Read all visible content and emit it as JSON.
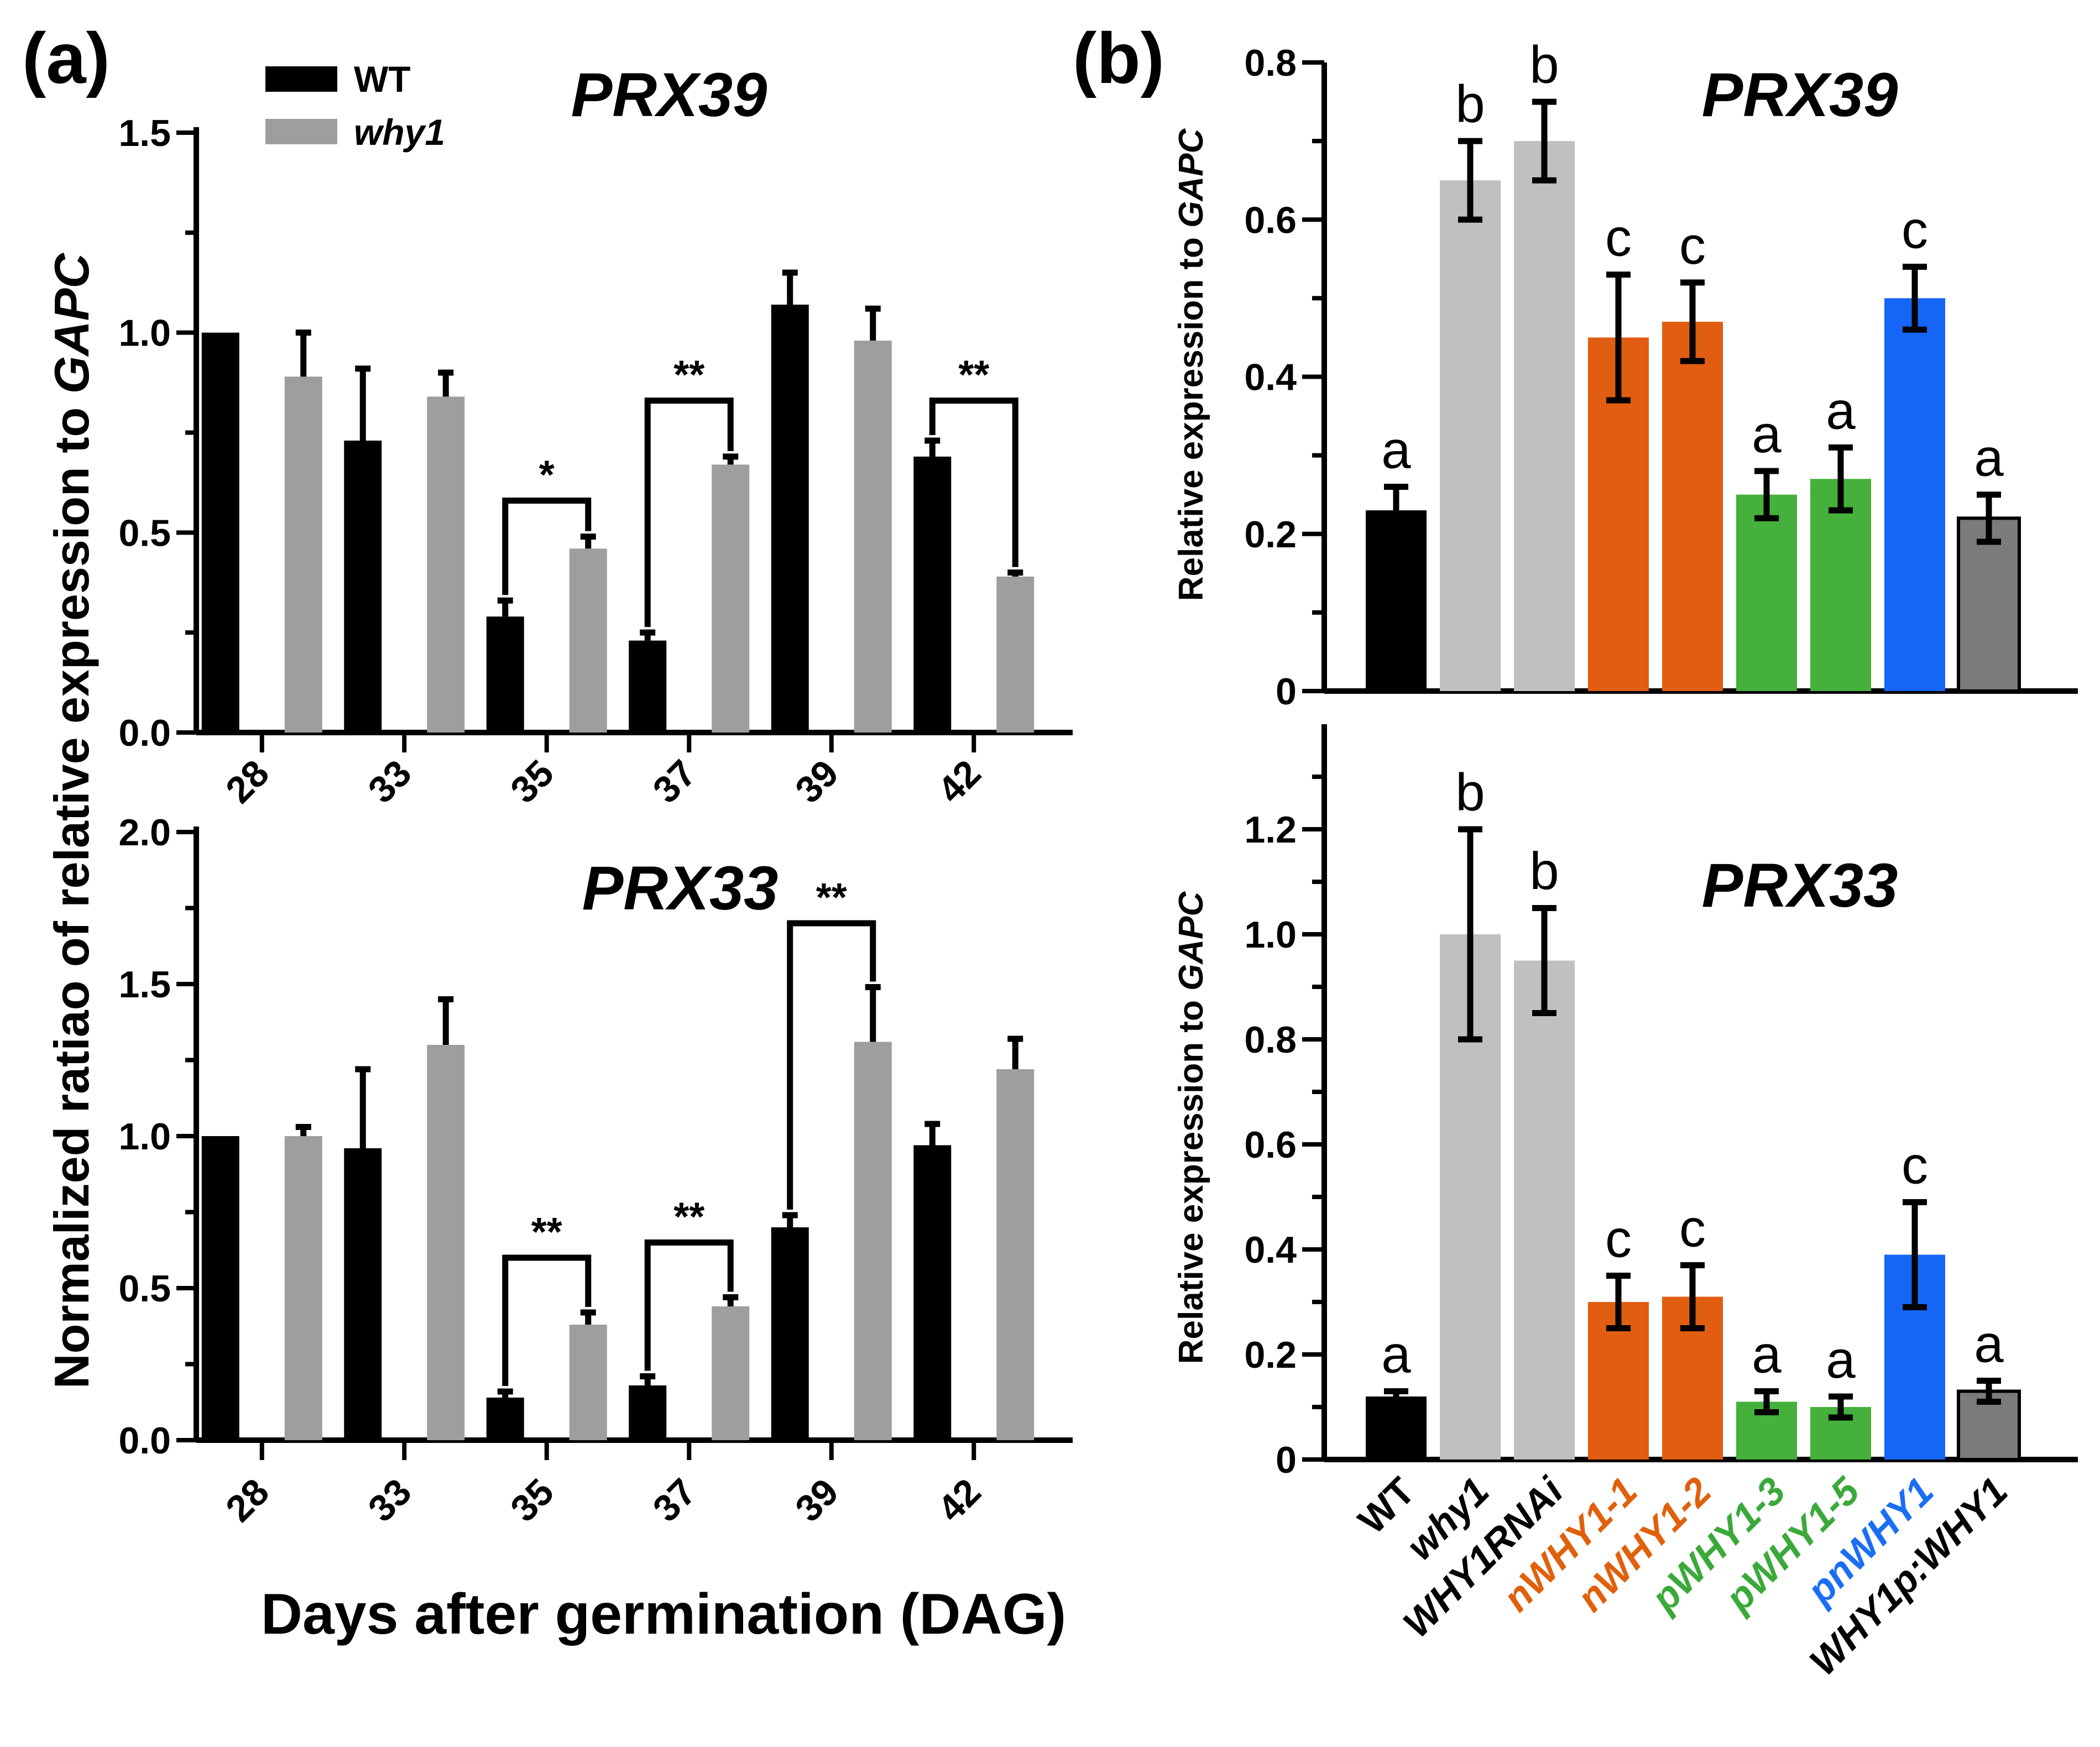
{
  "panel_labels": {
    "a": "(a)",
    "b": "(b)"
  },
  "legend": [
    {
      "name": "WT",
      "color": "#000000"
    },
    {
      "name": "why1",
      "color": "#9e9e9e"
    }
  ],
  "panel_a": {
    "ylabel_prefix": "Normalized ratiao of relative expression to ",
    "ylabel_gene": "GAPC",
    "xlabel": "Days after germination (DAG)"
  },
  "panel_b": {
    "ylabel_prefix": "Relative expression to ",
    "ylabel_gene": "GAPC"
  },
  "chart_data": [
    {
      "id": "a_prx39",
      "type": "bar",
      "title": "PRX39",
      "categories": [
        "28",
        "33",
        "35",
        "37",
        "39",
        "42"
      ],
      "series": [
        {
          "name": "WT",
          "color": "#000000",
          "values": [
            1.0,
            0.73,
            0.29,
            0.23,
            1.07,
            0.69
          ],
          "errors": [
            0.0,
            0.18,
            0.04,
            0.02,
            0.08,
            0.04
          ]
        },
        {
          "name": "why1",
          "color": "#9e9e9e",
          "values": [
            0.89,
            0.84,
            0.46,
            0.67,
            0.98,
            0.39
          ],
          "errors": [
            0.11,
            0.06,
            0.03,
            0.02,
            0.08,
            0.01
          ]
        }
      ],
      "ylim": [
        0,
        1.5
      ],
      "yticks": [
        0.0,
        0.5,
        1.0,
        1.5
      ],
      "ytick_labels": [
        "0.0",
        "0.5",
        "1.0",
        "1.5"
      ],
      "significance": [
        {
          "category": "35",
          "label": "*",
          "y": 0.58
        },
        {
          "category": "37",
          "label": "**",
          "y": 0.83
        },
        {
          "category": "42",
          "label": "**",
          "y": 0.83
        }
      ]
    },
    {
      "id": "a_prx33",
      "type": "bar",
      "title": "PRX33",
      "categories": [
        "28",
        "33",
        "35",
        "37",
        "39",
        "42"
      ],
      "series": [
        {
          "name": "WT",
          "color": "#000000",
          "values": [
            1.0,
            0.96,
            0.14,
            0.18,
            0.7,
            0.97
          ],
          "errors": [
            0.0,
            0.26,
            0.02,
            0.03,
            0.04,
            0.07
          ]
        },
        {
          "name": "why1",
          "color": "#9e9e9e",
          "values": [
            1.0,
            1.3,
            0.38,
            0.44,
            1.31,
            1.22
          ],
          "errors": [
            0.03,
            0.15,
            0.04,
            0.03,
            0.18,
            0.1
          ]
        }
      ],
      "ylim": [
        0,
        2.0
      ],
      "yticks": [
        0.0,
        0.5,
        1.0,
        1.5,
        2.0
      ],
      "ytick_labels": [
        "0.0",
        "0.5",
        "1.0",
        "1.5",
        "2.0"
      ],
      "significance": [
        {
          "category": "35",
          "label": "**",
          "y": 0.6
        },
        {
          "category": "37",
          "label": "**",
          "y": 0.65
        },
        {
          "category": "39",
          "label": "**",
          "y": 1.7
        }
      ]
    },
    {
      "id": "b_prx39",
      "type": "bar",
      "title": "PRX39",
      "categories": [
        "WT",
        "why1",
        "WHY1RNAi",
        "nWHY1-1",
        "nWHY1-2",
        "pWHY1-3",
        "pWHY1-5",
        "pnWHY1",
        "WHY1p:WHY1"
      ],
      "category_colors": [
        "#000000",
        "#000000",
        "#000000",
        "#e0600b",
        "#e0600b",
        "#3aa93a",
        "#3aa93a",
        "#1a6ef5",
        "#000000"
      ],
      "category_italic": [
        false,
        true,
        true,
        true,
        true,
        true,
        true,
        true,
        true
      ],
      "bar_colors": [
        "#000000",
        "#c0c0c0",
        "#c0c0c0",
        "#e05d12",
        "#e05d12",
        "#45b03c",
        "#45b03c",
        "#1565f6",
        "#7b7b7b"
      ],
      "values": [
        0.23,
        0.65,
        0.7,
        0.45,
        0.47,
        0.25,
        0.27,
        0.5,
        0.22
      ],
      "errors": [
        0.03,
        0.05,
        0.05,
        0.08,
        0.05,
        0.03,
        0.04,
        0.04,
        0.03
      ],
      "letters": [
        "a",
        "b",
        "b",
        "c",
        "c",
        "a",
        "a",
        "c",
        "a"
      ],
      "ylim": [
        0,
        0.8
      ],
      "yticks": [
        0,
        0.2,
        0.4,
        0.6,
        0.8
      ],
      "ytick_labels": [
        "0",
        "0.2",
        "0.4",
        "0.6",
        "0.8"
      ]
    },
    {
      "id": "b_prx33",
      "type": "bar",
      "title": "PRX33",
      "categories": [
        "WT",
        "why1",
        "WHY1RNAi",
        "nWHY1-1",
        "nWHY1-2",
        "pWHY1-3",
        "pWHY1-5",
        "pnWHY1",
        "WHY1p:WHY1"
      ],
      "category_colors": [
        "#000000",
        "#000000",
        "#000000",
        "#e0600b",
        "#e0600b",
        "#3aa93a",
        "#3aa93a",
        "#1a6ef5",
        "#000000"
      ],
      "category_italic": [
        false,
        true,
        true,
        true,
        true,
        true,
        true,
        true,
        true
      ],
      "bar_colors": [
        "#000000",
        "#c0c0c0",
        "#c0c0c0",
        "#e05d12",
        "#e05d12",
        "#45b03c",
        "#45b03c",
        "#1565f6",
        "#7b7b7b"
      ],
      "values": [
        0.12,
        1.0,
        0.95,
        0.3,
        0.31,
        0.11,
        0.1,
        0.39,
        0.13
      ],
      "errors": [
        0.01,
        0.2,
        0.1,
        0.05,
        0.06,
        0.02,
        0.02,
        0.1,
        0.02
      ],
      "letters": [
        "a",
        "b",
        "b",
        "c",
        "c",
        "a",
        "a",
        "c",
        "a"
      ],
      "ylim": [
        0,
        1.4
      ],
      "yticks": [
        0,
        0.2,
        0.4,
        0.6,
        0.8,
        1.0,
        1.2
      ],
      "ytick_labels": [
        "0",
        "0.2",
        "0.4",
        "0.6",
        "0.8",
        "1.0",
        "1.2"
      ]
    }
  ]
}
